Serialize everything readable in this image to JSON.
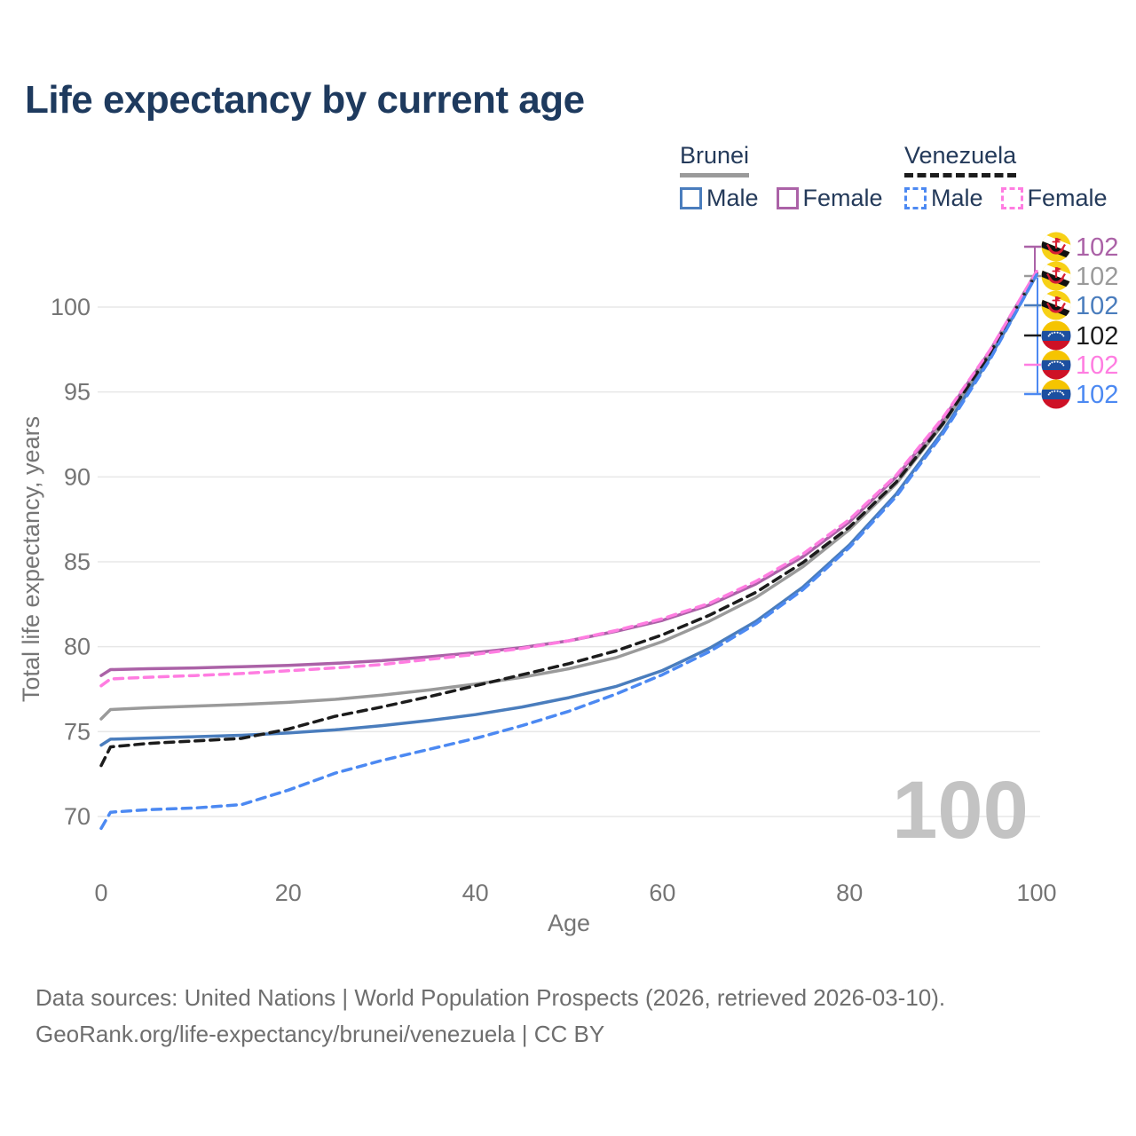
{
  "title": "Life expectancy by current age",
  "legend": {
    "groups": [
      {
        "label": "Brunei",
        "line_style": "solid",
        "underline_color": "#9a9a9a",
        "items": [
          {
            "label": "Male",
            "color": "#4a7dbd"
          },
          {
            "label": "Female",
            "color": "#ab62a7"
          }
        ]
      },
      {
        "label": "Venezuela",
        "line_style": "dashed",
        "underline_color": "#1c1c1c",
        "items": [
          {
            "label": "Male",
            "color": "#4c89f2"
          },
          {
            "label": "Female",
            "color": "#ff7de1"
          }
        ]
      }
    ]
  },
  "watermark": "100",
  "footer": {
    "line1": "Data sources: United Nations | World Population Prospects (2026, retrieved 2026-03-10).",
    "line2": "GeoRank.org/life-expectancy/brunei/venezuela | CC BY"
  },
  "chart_data": {
    "type": "line",
    "title": "Life expectancy by current age",
    "xlabel": "Age",
    "ylabel": "Total life expectancy, years",
    "xlim": [
      0,
      100
    ],
    "ylim": [
      69,
      103
    ],
    "x_ticks": [
      0,
      20,
      40,
      60,
      80,
      100
    ],
    "y_ticks": [
      70,
      75,
      80,
      85,
      90,
      95,
      100
    ],
    "grid": "horizontal",
    "gridline_color": "#e7e7e7",
    "axis_text_color": "#757575",
    "legend_position": "top-right",
    "series": [
      {
        "id": "brunei-female",
        "country": "Brunei",
        "sex": "Female",
        "color": "#ab62a7",
        "dash": false,
        "flag": "brunei",
        "end_label": "102",
        "points": [
          [
            0,
            78.3
          ],
          [
            1,
            78.65
          ],
          [
            5,
            78.7
          ],
          [
            10,
            78.75
          ],
          [
            15,
            78.82
          ],
          [
            20,
            78.9
          ],
          [
            25,
            79.02
          ],
          [
            30,
            79.18
          ],
          [
            35,
            79.4
          ],
          [
            40,
            79.65
          ],
          [
            45,
            79.95
          ],
          [
            50,
            80.35
          ],
          [
            55,
            80.9
          ],
          [
            60,
            81.55
          ],
          [
            65,
            82.45
          ],
          [
            70,
            83.7
          ],
          [
            75,
            85.3
          ],
          [
            80,
            87.35
          ],
          [
            85,
            90.0
          ],
          [
            90,
            93.4
          ],
          [
            95,
            97.4
          ],
          [
            100,
            102.1
          ]
        ]
      },
      {
        "id": "brunei-total",
        "country": "Brunei",
        "sex": "Both",
        "color": "#9a9a9a",
        "dash": false,
        "flag": "brunei",
        "end_label": "102",
        "points": [
          [
            0,
            75.75
          ],
          [
            1,
            76.3
          ],
          [
            5,
            76.4
          ],
          [
            10,
            76.5
          ],
          [
            15,
            76.6
          ],
          [
            20,
            76.72
          ],
          [
            25,
            76.9
          ],
          [
            30,
            77.15
          ],
          [
            35,
            77.45
          ],
          [
            40,
            77.8
          ],
          [
            45,
            78.2
          ],
          [
            50,
            78.7
          ],
          [
            55,
            79.35
          ],
          [
            60,
            80.3
          ],
          [
            65,
            81.5
          ],
          [
            70,
            82.9
          ],
          [
            75,
            84.7
          ],
          [
            80,
            86.9
          ],
          [
            85,
            89.6
          ],
          [
            90,
            93.1
          ],
          [
            95,
            97.2
          ],
          [
            100,
            102.0
          ]
        ]
      },
      {
        "id": "brunei-male",
        "country": "Brunei",
        "sex": "Male",
        "color": "#4a7dbd",
        "dash": false,
        "flag": "brunei",
        "end_label": "102",
        "points": [
          [
            0,
            74.2
          ],
          [
            1,
            74.55
          ],
          [
            5,
            74.62
          ],
          [
            10,
            74.7
          ],
          [
            15,
            74.78
          ],
          [
            20,
            74.92
          ],
          [
            25,
            75.1
          ],
          [
            30,
            75.35
          ],
          [
            35,
            75.65
          ],
          [
            40,
            76.0
          ],
          [
            45,
            76.45
          ],
          [
            50,
            77.0
          ],
          [
            55,
            77.65
          ],
          [
            60,
            78.6
          ],
          [
            65,
            79.9
          ],
          [
            70,
            81.5
          ],
          [
            75,
            83.5
          ],
          [
            80,
            86.0
          ],
          [
            85,
            89.0
          ],
          [
            90,
            92.7
          ],
          [
            95,
            97.0
          ],
          [
            100,
            101.9
          ]
        ]
      },
      {
        "id": "venezuela-total",
        "country": "Venezuela",
        "sex": "Both",
        "color": "#1c1c1c",
        "dash": true,
        "flag": "venezuela",
        "end_label": "102",
        "points": [
          [
            0,
            73.0
          ],
          [
            1,
            74.1
          ],
          [
            5,
            74.3
          ],
          [
            10,
            74.45
          ],
          [
            15,
            74.6
          ],
          [
            20,
            75.15
          ],
          [
            25,
            75.9
          ],
          [
            30,
            76.45
          ],
          [
            35,
            77.05
          ],
          [
            40,
            77.7
          ],
          [
            45,
            78.35
          ],
          [
            50,
            79.0
          ],
          [
            55,
            79.75
          ],
          [
            60,
            80.7
          ],
          [
            65,
            81.85
          ],
          [
            70,
            83.2
          ],
          [
            75,
            84.95
          ],
          [
            80,
            87.05
          ],
          [
            85,
            89.7
          ],
          [
            90,
            93.15
          ],
          [
            95,
            97.25
          ],
          [
            100,
            102.0
          ]
        ]
      },
      {
        "id": "venezuela-female",
        "country": "Venezuela",
        "sex": "Female",
        "color": "#ff7de1",
        "dash": true,
        "flag": "venezuela",
        "end_label": "102",
        "points": [
          [
            0,
            77.7
          ],
          [
            1,
            78.1
          ],
          [
            5,
            78.2
          ],
          [
            10,
            78.3
          ],
          [
            15,
            78.42
          ],
          [
            20,
            78.58
          ],
          [
            25,
            78.75
          ],
          [
            30,
            78.95
          ],
          [
            35,
            79.25
          ],
          [
            40,
            79.55
          ],
          [
            45,
            79.9
          ],
          [
            50,
            80.35
          ],
          [
            55,
            80.95
          ],
          [
            60,
            81.65
          ],
          [
            65,
            82.55
          ],
          [
            70,
            83.85
          ],
          [
            75,
            85.45
          ],
          [
            80,
            87.5
          ],
          [
            85,
            90.1
          ],
          [
            90,
            93.5
          ],
          [
            95,
            97.45
          ],
          [
            100,
            102.1
          ]
        ]
      },
      {
        "id": "venezuela-male",
        "country": "Venezuela",
        "sex": "Male",
        "color": "#4c89f2",
        "dash": true,
        "flag": "venezuela",
        "end_label": "102",
        "points": [
          [
            0,
            69.3
          ],
          [
            1,
            70.25
          ],
          [
            5,
            70.4
          ],
          [
            10,
            70.5
          ],
          [
            15,
            70.7
          ],
          [
            20,
            71.55
          ],
          [
            25,
            72.55
          ],
          [
            30,
            73.3
          ],
          [
            35,
            73.95
          ],
          [
            40,
            74.6
          ],
          [
            45,
            75.35
          ],
          [
            50,
            76.2
          ],
          [
            55,
            77.2
          ],
          [
            60,
            78.35
          ],
          [
            65,
            79.7
          ],
          [
            70,
            81.35
          ],
          [
            75,
            83.35
          ],
          [
            80,
            85.85
          ],
          [
            85,
            88.85
          ],
          [
            90,
            92.55
          ],
          [
            95,
            96.9
          ],
          [
            100,
            101.9
          ]
        ]
      }
    ],
    "end_labels": [
      {
        "series": "brunei-female",
        "flag": "brunei",
        "value": "102",
        "color": "#ab62a7"
      },
      {
        "series": "brunei-total",
        "flag": "brunei",
        "value": "102",
        "color": "#9a9a9a"
      },
      {
        "series": "brunei-male",
        "flag": "brunei",
        "value": "102",
        "color": "#4a7dbd"
      },
      {
        "series": "venezuela-total",
        "flag": "venezuela",
        "value": "102",
        "color": "#1c1c1c"
      },
      {
        "series": "venezuela-female",
        "flag": "venezuela",
        "value": "102",
        "color": "#ff7de1"
      },
      {
        "series": "venezuela-male",
        "flag": "venezuela",
        "value": "102",
        "color": "#4c89f2"
      }
    ]
  }
}
